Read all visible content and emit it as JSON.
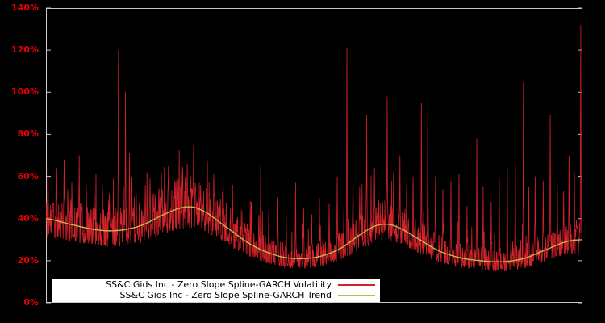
{
  "chart_data": {
    "type": "line",
    "title": "",
    "grid": false,
    "background_color": "#000000",
    "border_color": "#c8c8c8",
    "tick_label_color": "#e60000",
    "x_axis": {
      "labels_visible": false,
      "range": [
        0,
        1
      ]
    },
    "y_axis": {
      "min": 0,
      "max": 140,
      "unit": "%",
      "tick_values": [
        0,
        20,
        40,
        60,
        80,
        100,
        120,
        140
      ],
      "ticks": [
        "0%",
        "20%",
        "40%",
        "60%",
        "80%",
        "100%",
        "120%",
        "140%"
      ]
    },
    "legend": {
      "position": "bottom-left-inside",
      "background": "#ffffff",
      "text_color": "#000000"
    },
    "series": [
      {
        "name": "SS&C Gids Inc - Zero Slope Spline-GARCH Volatility",
        "color": "#d3222a",
        "style": "noisy-line"
      },
      {
        "name": "SS&C Gids Inc - Zero Slope Spline-GARCH Trend",
        "color": "#c3b64d",
        "style": "smooth-line"
      }
    ],
    "trend_keypoints": [
      [
        0.0,
        40.0
      ],
      [
        0.05,
        37.0
      ],
      [
        0.1,
        34.5
      ],
      [
        0.14,
        34.5
      ],
      [
        0.18,
        37.0
      ],
      [
        0.22,
        42.0
      ],
      [
        0.26,
        45.5
      ],
      [
        0.29,
        44.0
      ],
      [
        0.33,
        37.0
      ],
      [
        0.38,
        28.0
      ],
      [
        0.43,
        22.5
      ],
      [
        0.47,
        21.0
      ],
      [
        0.51,
        22.0
      ],
      [
        0.55,
        26.0
      ],
      [
        0.59,
        33.0
      ],
      [
        0.62,
        37.0
      ],
      [
        0.65,
        36.5
      ],
      [
        0.69,
        31.0
      ],
      [
        0.73,
        25.0
      ],
      [
        0.77,
        21.5
      ],
      [
        0.81,
        20.0
      ],
      [
        0.85,
        19.5
      ],
      [
        0.89,
        21.0
      ],
      [
        0.93,
        25.0
      ],
      [
        0.97,
        29.0
      ],
      [
        1.0,
        30.0
      ]
    ],
    "volatility_spikes": [
      [
        0.004,
        72
      ],
      [
        0.02,
        64
      ],
      [
        0.034,
        68
      ],
      [
        0.048,
        57
      ],
      [
        0.062,
        70
      ],
      [
        0.075,
        56
      ],
      [
        0.09,
        52
      ],
      [
        0.105,
        56
      ],
      [
        0.118,
        52
      ],
      [
        0.135,
        120
      ],
      [
        0.148,
        100
      ],
      [
        0.156,
        71
      ],
      [
        0.168,
        52
      ],
      [
        0.185,
        56
      ],
      [
        0.2,
        52
      ],
      [
        0.215,
        62
      ],
      [
        0.228,
        65
      ],
      [
        0.24,
        58
      ],
      [
        0.252,
        70
      ],
      [
        0.263,
        66
      ],
      [
        0.275,
        75
      ],
      [
        0.288,
        56
      ],
      [
        0.3,
        68
      ],
      [
        0.313,
        61
      ],
      [
        0.33,
        54
      ],
      [
        0.348,
        56
      ],
      [
        0.365,
        44
      ],
      [
        0.383,
        48
      ],
      [
        0.4,
        65
      ],
      [
        0.415,
        44
      ],
      [
        0.432,
        50
      ],
      [
        0.448,
        42
      ],
      [
        0.465,
        57
      ],
      [
        0.48,
        45
      ],
      [
        0.495,
        42
      ],
      [
        0.51,
        50
      ],
      [
        0.528,
        47
      ],
      [
        0.543,
        60
      ],
      [
        0.561,
        121
      ],
      [
        0.572,
        64
      ],
      [
        0.585,
        55
      ],
      [
        0.598,
        89
      ],
      [
        0.612,
        64
      ],
      [
        0.636,
        98
      ],
      [
        0.648,
        62
      ],
      [
        0.66,
        70
      ],
      [
        0.672,
        56
      ],
      [
        0.684,
        60
      ],
      [
        0.7,
        95
      ],
      [
        0.712,
        92
      ],
      [
        0.726,
        60
      ],
      [
        0.74,
        54
      ],
      [
        0.755,
        58
      ],
      [
        0.77,
        61
      ],
      [
        0.785,
        46
      ],
      [
        0.803,
        78
      ],
      [
        0.815,
        55
      ],
      [
        0.83,
        48
      ],
      [
        0.845,
        59
      ],
      [
        0.86,
        64
      ],
      [
        0.875,
        66
      ],
      [
        0.89,
        105
      ],
      [
        0.9,
        55
      ],
      [
        0.912,
        60
      ],
      [
        0.927,
        58
      ],
      [
        0.94,
        89
      ],
      [
        0.953,
        56
      ],
      [
        0.965,
        53
      ],
      [
        0.975,
        70
      ],
      [
        0.985,
        62
      ],
      [
        0.997,
        132
      ]
    ],
    "noise": {
      "seed": 11,
      "n_points": 1600,
      "band_low": 0.78,
      "band_high": 1.33,
      "bias": 1.6,
      "burst_prob": 0.05,
      "burst_low": 1.15,
      "burst_high": 1.8
    }
  }
}
